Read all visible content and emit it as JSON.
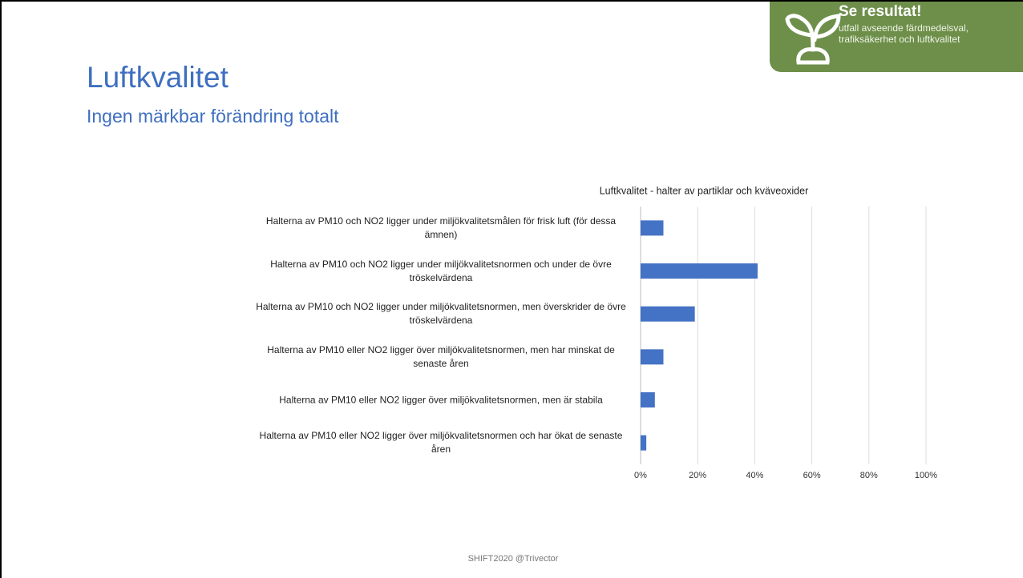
{
  "header": {
    "title": "Luftkvalitet",
    "subtitle": "Ingen märkbar förändring totalt"
  },
  "badge": {
    "title": "Se resultat!",
    "text": "utfall avseende färdmedelsval, trafiksäkerhet och luftkvalitet"
  },
  "footer": "SHIFT2020 @Trivector",
  "chart_data": {
    "type": "hbar",
    "title": "Luftkvalitet - halter av partiklar och kväveoxider",
    "categories": [
      "Halterna av PM10 och NO2 ligger under miljökvalitetsmålen för frisk luft (för dessa ämnen)",
      "Halterna av PM10 och NO2 ligger under miljökvalitetsnormen och under de övre tröskelvärdena",
      "Halterna av PM10 och NO2 ligger under miljökvalitetsnormen, men överskrider de övre tröskelvärdena",
      "Halterna av PM10 eller NO2 ligger över miljökvalitetsnormen, men har minskat de senaste åren",
      "Halterna av PM10 eller NO2 ligger över miljökvalitetsnormen, men är stabila",
      "Halterna av PM10 eller NO2 ligger över miljökvalitetsnormen och har ökat de senaste åren"
    ],
    "values": [
      8,
      41,
      19,
      8,
      5,
      2
    ],
    "color": "#4472c4",
    "xlim": [
      0,
      100
    ],
    "xticks": [
      {
        "value": 0,
        "label": "0%"
      },
      {
        "value": 20,
        "label": "20%"
      },
      {
        "value": 40,
        "label": "40%"
      },
      {
        "value": 60,
        "label": "60%"
      },
      {
        "value": 80,
        "label": "80%"
      },
      {
        "value": 100,
        "label": "100%"
      }
    ],
    "grid": true
  }
}
